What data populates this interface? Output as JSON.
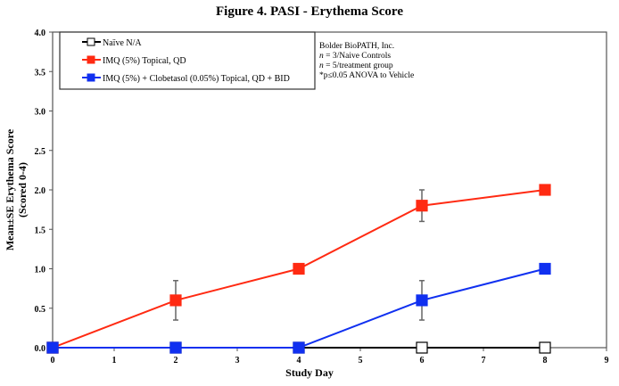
{
  "chart_data": {
    "type": "line",
    "title": "Figure 4. PASI - Erythema Score",
    "xlabel": "Study Day",
    "ylabel": [
      "Mean±SE Erythema Score",
      "(Scored 0-4)"
    ],
    "xlim": [
      0,
      9
    ],
    "ylim": [
      0,
      4
    ],
    "xticks": [
      "0",
      "1",
      "2",
      "3",
      "4",
      "5",
      "6",
      "7",
      "8",
      "9"
    ],
    "yticks": [
      "0.0",
      "0.5",
      "1.0",
      "1.5",
      "2.0",
      "2.5",
      "3.0",
      "3.5",
      "4.0"
    ],
    "grid": false,
    "legend_placement": "top-left",
    "x": [
      0,
      2,
      4,
      6,
      8
    ],
    "series": [
      {
        "name": "Naïve N/A",
        "color": "#000000",
        "marker": "hollow-square",
        "values": [
          0,
          0,
          0,
          0,
          0
        ],
        "errors": [
          0,
          0,
          0,
          0,
          0
        ]
      },
      {
        "name": "IMQ (5%) Topical, QD",
        "color": "#ff2a12",
        "marker": "filled-square",
        "values": [
          0,
          0.6,
          1.0,
          1.8,
          2.0
        ],
        "errors": [
          0,
          0.25,
          0,
          0.2,
          0
        ]
      },
      {
        "name": "IMQ (5%) + Clobetasol (0.05%) Topical, QD + BID",
        "color": "#1030f0",
        "marker": "filled-square",
        "values": [
          0,
          0,
          0,
          0.6,
          1.0
        ],
        "errors": [
          0,
          0,
          0,
          0.25,
          0
        ]
      }
    ],
    "annotations": [
      "Bolder BioPATH, Inc.",
      "n = 3/Naive Controls",
      "n = 5/treatment group",
      "*p≤0.05 ANOVA to Vehicle"
    ]
  }
}
